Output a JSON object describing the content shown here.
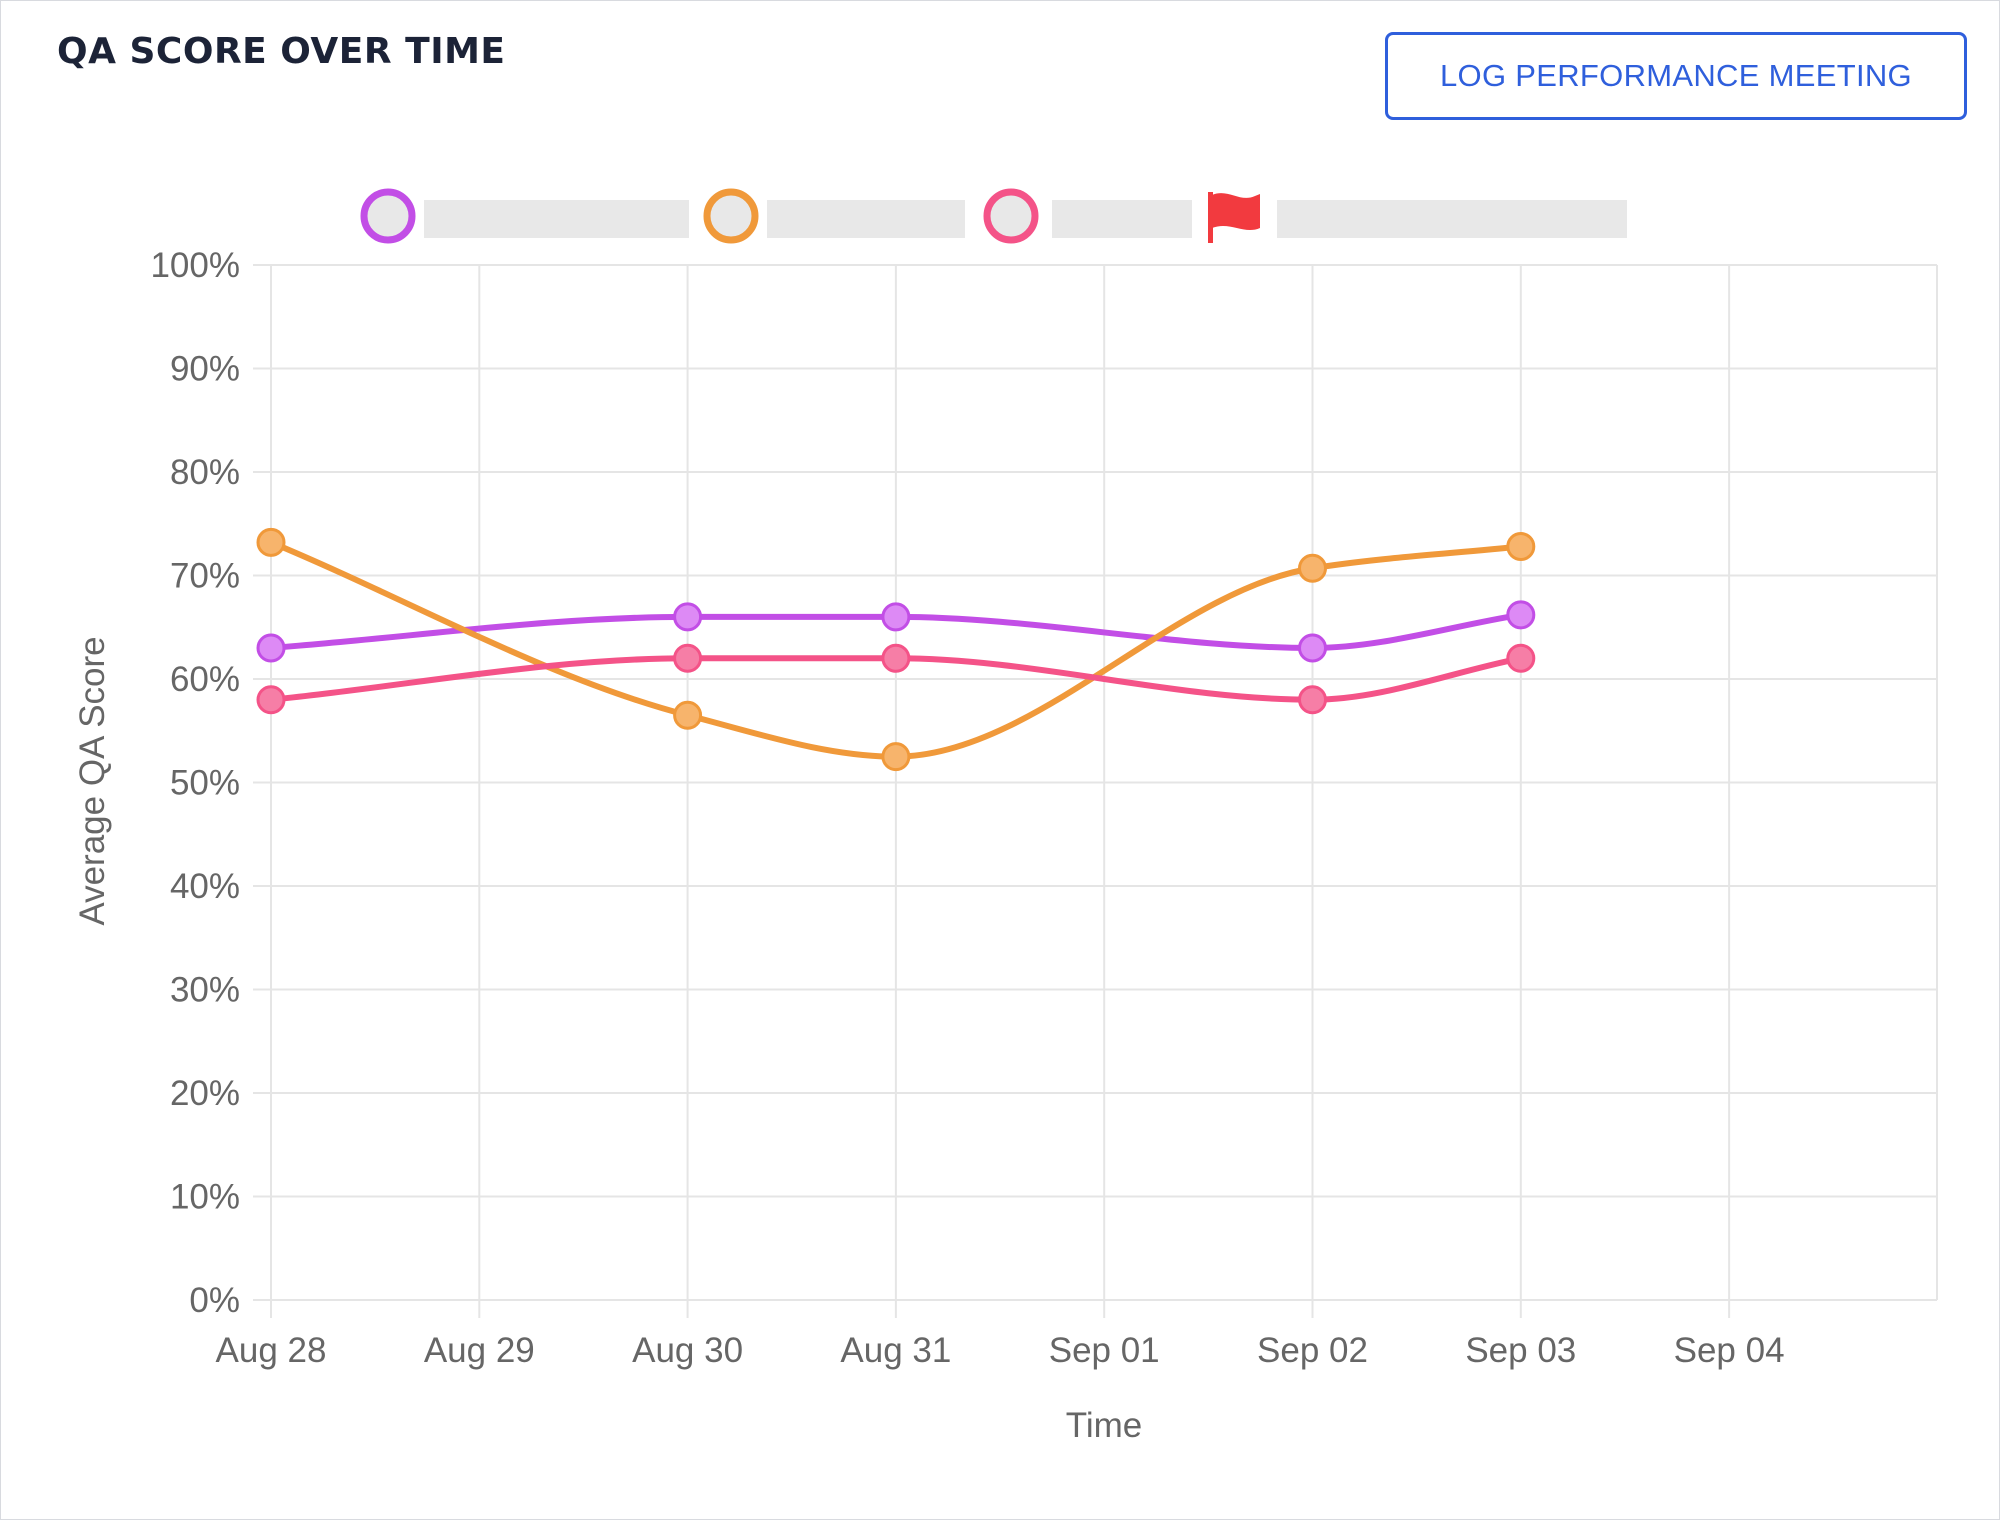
{
  "header": {
    "title": "QA SCORE OVER TIME",
    "action_button_label": "LOG PERFORMANCE MEETING"
  },
  "legend": {
    "items": [
      {
        "series_index": 0,
        "label_redacted": true
      },
      {
        "series_index": 1,
        "label_redacted": true
      },
      {
        "series_index": 2,
        "label_redacted": true
      },
      {
        "icon": "red-flag-icon",
        "label_redacted": true
      }
    ]
  },
  "colors": {
    "accent": "#2f5fdc",
    "grid": "#e5e5e5",
    "axis_text": "#666666",
    "redacted_bar": "#e8e8e8",
    "flag": "#f23a3f"
  },
  "chart_data": {
    "type": "line",
    "title": "",
    "xlabel": "Time",
    "ylabel": "Average QA Score",
    "categories": [
      "Aug 28",
      "Aug 29",
      "Aug 30",
      "Aug 31",
      "Sep 01",
      "Sep 02",
      "Sep 03",
      "Sep 04"
    ],
    "ylim": [
      0,
      100
    ],
    "yticks": [
      0,
      10,
      20,
      30,
      40,
      50,
      60,
      70,
      80,
      90,
      100
    ],
    "ytick_format": "{v}%",
    "grid": true,
    "legend_position": "top",
    "series": [
      {
        "color": "#c24ee6",
        "fill": "#dd8af5",
        "values": [
          63,
          null,
          66,
          66,
          null,
          63,
          66.2,
          null
        ]
      },
      {
        "color": "#f0993a",
        "fill": "#f7b46c",
        "values": [
          73.2,
          null,
          56.5,
          52.5,
          null,
          70.7,
          72.8,
          null
        ]
      },
      {
        "color": "#f45388",
        "fill": "#f67ea6",
        "values": [
          58,
          null,
          62,
          62,
          null,
          58,
          62,
          null
        ]
      }
    ]
  }
}
